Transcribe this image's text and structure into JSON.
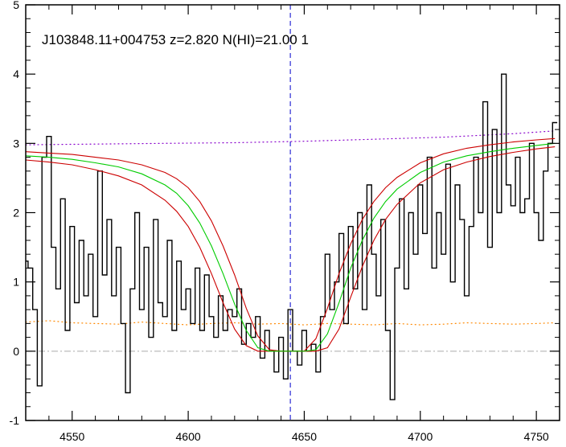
{
  "chart_data": {
    "type": "line",
    "title": "J103848.11+004753 z=2.820 N(HI)=21.00 1",
    "xlabel": "",
    "ylabel": "",
    "xlim": [
      4530,
      4760
    ],
    "ylim": [
      -1,
      5
    ],
    "x_ticks": [
      4550,
      4600,
      4650,
      4700,
      4750
    ],
    "x_tick_labels": [
      "4550",
      "4600",
      "4650",
      "4700",
      "4750"
    ],
    "y_ticks": [
      -1,
      0,
      1,
      2,
      3,
      4,
      5
    ],
    "y_tick_labels": [
      "-1",
      "0",
      "1",
      "2",
      "3",
      "4",
      "5"
    ],
    "grid": false,
    "vline_x": 4644,
    "zero_line_y": 0,
    "colors": {
      "flux": "#000000",
      "model": "#00cc00",
      "model_bounds": "#cc0000",
      "continuum": "#8800cc",
      "error": "#ff8800",
      "vline": "#0000cc",
      "zero": "#aaaaaa"
    },
    "series": [
      {
        "role": "flux",
        "style": "step",
        "x": [
          4530,
          4532,
          4534,
          4536,
          4538,
          4540,
          4542,
          4544,
          4546,
          4548,
          4550,
          4552,
          4554,
          4556,
          4558,
          4560,
          4562,
          4564,
          4566,
          4568,
          4570,
          4572,
          4574,
          4576,
          4578,
          4580,
          4582,
          4584,
          4586,
          4588,
          4590,
          4592,
          4594,
          4596,
          4598,
          4600,
          4602,
          4604,
          4606,
          4608,
          4610,
          4612,
          4614,
          4616,
          4618,
          4620,
          4622,
          4624,
          4626,
          4628,
          4630,
          4632,
          4634,
          4636,
          4638,
          4640,
          4642,
          4644,
          4646,
          4648,
          4650,
          4652,
          4654,
          4656,
          4658,
          4660,
          4662,
          4664,
          4666,
          4668,
          4670,
          4672,
          4674,
          4676,
          4678,
          4680,
          4682,
          4684,
          4686,
          4688,
          4690,
          4692,
          4694,
          4696,
          4698,
          4700,
          4702,
          4704,
          4706,
          4708,
          4710,
          4712,
          4714,
          4716,
          4718,
          4720,
          4722,
          4724,
          4726,
          4728,
          4730,
          4732,
          4734,
          4736,
          4738,
          4740,
          4742,
          4744,
          4746,
          4748,
          4750,
          4752,
          4754,
          4756,
          4758
        ],
        "y": [
          1.3,
          1.2,
          0.6,
          -0.5,
          2.8,
          3.1,
          1.5,
          0.9,
          2.2,
          0.3,
          1.8,
          0.7,
          1.6,
          0.8,
          1.4,
          0.5,
          2.6,
          1.1,
          1.9,
          0.8,
          1.5,
          0.4,
          -0.6,
          0.9,
          2.0,
          0.6,
          1.5,
          0.2,
          1.9,
          0.7,
          0.5,
          1.6,
          0.3,
          1.3,
          0.6,
          0.9,
          0.4,
          1.2,
          0.3,
          1.1,
          0.5,
          0.2,
          0.8,
          0.3,
          0.6,
          0.5,
          0.9,
          0.1,
          0.4,
          0.2,
          0.5,
          -0.1,
          0.3,
          0.0,
          -0.3,
          0.2,
          -0.4,
          0.6,
          0.0,
          -0.2,
          0.3,
          0.0,
          0.1,
          -0.3,
          0.5,
          1.4,
          0.6,
          1.0,
          1.7,
          0.4,
          1.8,
          0.9,
          2.0,
          0.6,
          2.4,
          1.4,
          0.8,
          1.9,
          0.3,
          -0.7,
          1.2,
          2.2,
          0.9,
          2.0,
          1.4,
          2.4,
          1.7,
          2.8,
          1.2,
          2.0,
          1.4,
          2.7,
          1.0,
          2.4,
          1.9,
          0.8,
          1.8,
          2.8,
          2.0,
          3.6,
          1.5,
          3.2,
          2.0,
          4.0,
          2.4,
          2.1,
          2.8,
          2.0,
          2.2,
          3.0,
          2.0,
          1.6,
          2.6,
          3.0,
          3.3
        ]
      },
      {
        "role": "model",
        "x": [
          4530,
          4540,
          4550,
          4560,
          4570,
          4580,
          4590,
          4595,
          4600,
          4605,
          4610,
          4615,
          4620,
          4625,
          4630,
          4635,
          4640,
          4645,
          4650,
          4655,
          4660,
          4665,
          4670,
          4675,
          4680,
          4685,
          4690,
          4700,
          4710,
          4720,
          4730,
          4740,
          4750,
          4758
        ],
        "y": [
          2.82,
          2.8,
          2.77,
          2.72,
          2.66,
          2.56,
          2.4,
          2.28,
          2.1,
          1.85,
          1.52,
          1.12,
          0.68,
          0.3,
          0.05,
          0.0,
          0.0,
          0.0,
          0.0,
          0.02,
          0.25,
          0.7,
          1.2,
          1.6,
          1.92,
          2.16,
          2.34,
          2.58,
          2.73,
          2.82,
          2.88,
          2.93,
          2.97,
          3.0
        ]
      },
      {
        "role": "model_bound_upper",
        "x": [
          4530,
          4540,
          4550,
          4560,
          4570,
          4580,
          4590,
          4595,
          4600,
          4605,
          4610,
          4615,
          4620,
          4625,
          4630,
          4635,
          4640,
          4645,
          4650,
          4655,
          4660,
          4665,
          4670,
          4675,
          4680,
          4685,
          4690,
          4700,
          4710,
          4720,
          4730,
          4740,
          4750,
          4758
        ],
        "y": [
          2.88,
          2.86,
          2.84,
          2.8,
          2.76,
          2.69,
          2.58,
          2.49,
          2.36,
          2.16,
          1.88,
          1.52,
          1.1,
          0.62,
          0.22,
          0.02,
          0.0,
          0.0,
          0.0,
          0.18,
          0.62,
          1.12,
          1.55,
          1.9,
          2.16,
          2.36,
          2.51,
          2.72,
          2.85,
          2.93,
          2.98,
          3.02,
          3.05,
          3.07
        ]
      },
      {
        "role": "model_bound_lower",
        "x": [
          4530,
          4540,
          4550,
          4560,
          4570,
          4580,
          4590,
          4595,
          4600,
          4605,
          4610,
          4615,
          4620,
          4625,
          4630,
          4635,
          4640,
          4645,
          4650,
          4655,
          4660,
          4665,
          4670,
          4675,
          4680,
          4685,
          4690,
          4700,
          4710,
          4720,
          4730,
          4740,
          4750,
          4758
        ],
        "y": [
          2.76,
          2.73,
          2.69,
          2.62,
          2.53,
          2.4,
          2.18,
          2.02,
          1.8,
          1.5,
          1.12,
          0.7,
          0.32,
          0.08,
          0.0,
          0.0,
          0.0,
          0.0,
          0.0,
          0.0,
          0.05,
          0.32,
          0.78,
          1.22,
          1.6,
          1.9,
          2.12,
          2.43,
          2.62,
          2.73,
          2.81,
          2.87,
          2.92,
          2.95
        ]
      },
      {
        "role": "continuum",
        "style": "dotted",
        "x": [
          4530,
          4560,
          4590,
          4620,
          4650,
          4680,
          4710,
          4740,
          4758
        ],
        "y": [
          2.98,
          2.99,
          3.0,
          3.01,
          3.03,
          3.06,
          3.09,
          3.14,
          3.18
        ]
      },
      {
        "role": "error",
        "style": "dotted",
        "x": [
          4530,
          4540,
          4550,
          4560,
          4570,
          4580,
          4590,
          4600,
          4610,
          4620,
          4630,
          4640,
          4650,
          4660,
          4670,
          4680,
          4690,
          4700,
          4710,
          4720,
          4730,
          4740,
          4750,
          4758
        ],
        "y": [
          0.42,
          0.44,
          0.41,
          0.4,
          0.39,
          0.42,
          0.4,
          0.38,
          0.4,
          0.41,
          0.39,
          0.4,
          0.38,
          0.4,
          0.39,
          0.38,
          0.4,
          0.38,
          0.39,
          0.41,
          0.4,
          0.39,
          0.4,
          0.41
        ]
      }
    ]
  }
}
